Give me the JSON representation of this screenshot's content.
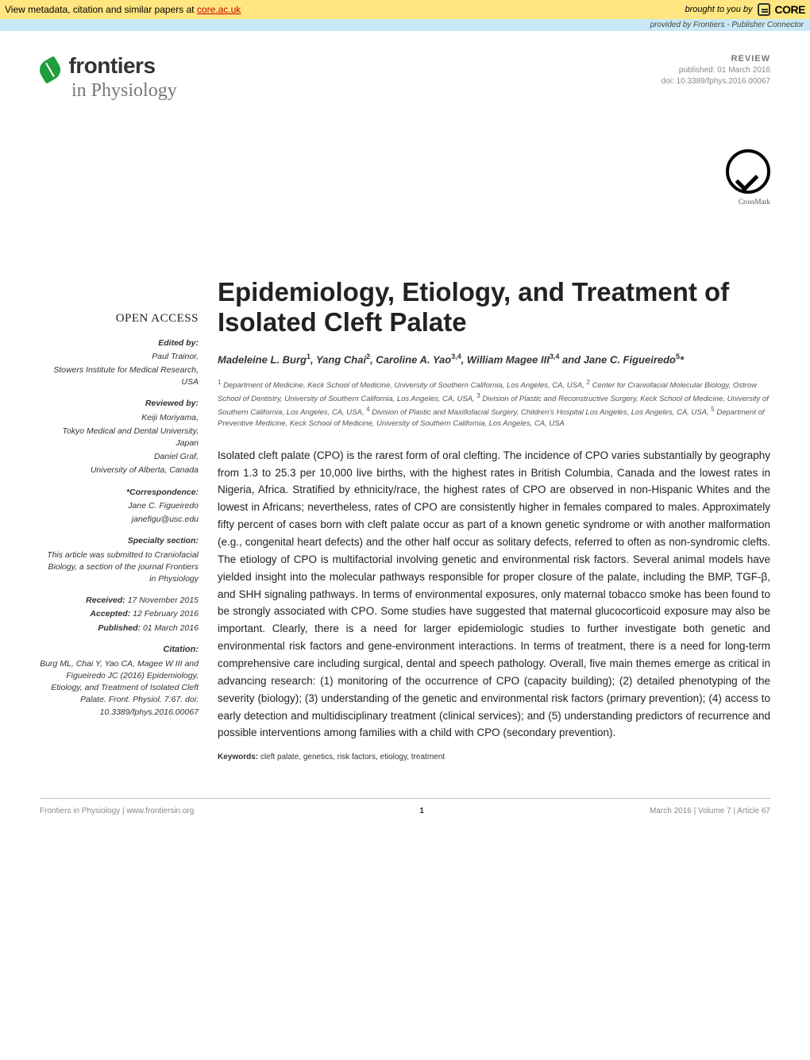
{
  "topbar": {
    "metadata_text": "View metadata, citation and similar papers at ",
    "metadata_link": "core.ac.uk",
    "brought_by": "brought to you by",
    "core_name": "CORE"
  },
  "providedbar": {
    "prefix": "provided by ",
    "source": "Frontiers - Publisher Connector"
  },
  "journal": {
    "name": "frontiers",
    "subtitle": "in Physiology"
  },
  "pubinfo": {
    "type": "REVIEW",
    "published": "published: 01 March 2016",
    "doi": "doi: 10.3389/fphys.2016.00067"
  },
  "crossmark": {
    "label": "CrossMark"
  },
  "title": "Epidemiology, Etiology, and Treatment of Isolated Cleft Palate",
  "authors_html": "Madeleine L. Burg<sup>1</sup>, Yang Chai<sup>2</sup>, Caroline A. Yao<sup>3,4</sup>, William Magee III<sup>3,4</sup> and Jane C. Figueiredo<sup>5</sup>*",
  "affiliations_html": "<sup>1</sup> Department of Medicine, Keck School of Medicine, University of Southern California, Los Angeles, CA, USA, <sup>2</sup> Center for Craniofacial Molecular Biology, Ostrow School of Dentistry, University of Southern California, Los Angeles, CA, USA, <sup>3</sup> Division of Plastic and Reconstructive Surgery, Keck School of Medicine, University of Southern California, Los Angeles, CA, USA, <sup>4</sup> Division of Plastic and Maxillofacial Surgery, Children's Hospital Los Angeles, Los Angeles, CA, USA, <sup>5</sup> Department of Preventive Medicine, Keck School of Medicine, University of Southern California, Los Angeles, CA, USA",
  "sidebar": {
    "open_access": "OPEN ACCESS",
    "edited_label": "Edited by:",
    "edited_name": "Paul Trainor,",
    "edited_affil": "Stowers Institute for Medical Research, USA",
    "reviewed_label": "Reviewed by:",
    "rev1_name": "Keiji Moriyama,",
    "rev1_affil": "Tokyo Medical and Dental University, Japan",
    "rev2_name": "Daniel Graf,",
    "rev2_affil": "University of Alberta, Canada",
    "corr_label": "*Correspondence:",
    "corr_name": "Jane C. Figueiredo",
    "corr_email": "janefigu@usc.edu",
    "specialty_label": "Specialty section:",
    "specialty_text": "This article was submitted to Craniofacial Biology, a section of the journal Frontiers in Physiology",
    "received_label": "Received:",
    "received_val": " 17 November 2015",
    "accepted_label": "Accepted:",
    "accepted_val": " 12 February 2016",
    "published_label": "Published:",
    "published_val": " 01 March 2016",
    "citation_label": "Citation:",
    "citation_text": "Burg ML, Chai Y, Yao CA, Magee W III and Figueiredo JC (2016) Epidemiology, Etiology, and Treatment of Isolated Cleft Palate. Front. Physiol. 7:67. doi: 10.3389/fphys.2016.00067"
  },
  "abstract": "Isolated cleft palate (CPO) is the rarest form of oral clefting. The incidence of CPO varies substantially by geography from 1.3 to 25.3 per 10,000 live births, with the highest rates in British Columbia, Canada and the lowest rates in Nigeria, Africa. Stratified by ethnicity/race, the highest rates of CPO are observed in non-Hispanic Whites and the lowest in Africans; nevertheless, rates of CPO are consistently higher in females compared to males. Approximately fifty percent of cases born with cleft palate occur as part of a known genetic syndrome or with another malformation (e.g., congenital heart defects) and the other half occur as solitary defects, referred to often as non-syndromic clefts. The etiology of CPO is multifactorial involving genetic and environmental risk factors. Several animal models have yielded insight into the molecular pathways responsible for proper closure of the palate, including the BMP, TGF-β, and SHH signaling pathways. In terms of environmental exposures, only maternal tobacco smoke has been found to be strongly associated with CPO. Some studies have suggested that maternal glucocorticoid exposure may also be important. Clearly, there is a need for larger epidemiologic studies to further investigate both genetic and environmental risk factors and gene-environment interactions. In terms of treatment, there is a need for long-term comprehensive care including surgical, dental and speech pathology. Overall, five main themes emerge as critical in advancing research: (1) monitoring of the occurrence of CPO (capacity building); (2) detailed phenotyping of the severity (biology); (3) understanding of the genetic and environmental risk factors (primary prevention); (4) access to early detection and multidisciplinary treatment (clinical services); and (5) understanding predictors of recurrence and possible interventions among families with a child with CPO (secondary prevention).",
  "keywords_label": "Keywords: ",
  "keywords_value": "cleft palate, genetics, risk factors, etiology, treatment",
  "footer": {
    "left1": "Frontiers in Physiology",
    "left2": " | www.frontiersin.org",
    "page": "1",
    "right": "March 2016 | Volume 7 | Article 67"
  },
  "colors": {
    "topbar_bg": "#ffe680",
    "provided_bg": "#c9e9f6",
    "link_red": "#cc0000",
    "leaf_green": "#1e9e3e",
    "text_gray": "#888888"
  }
}
